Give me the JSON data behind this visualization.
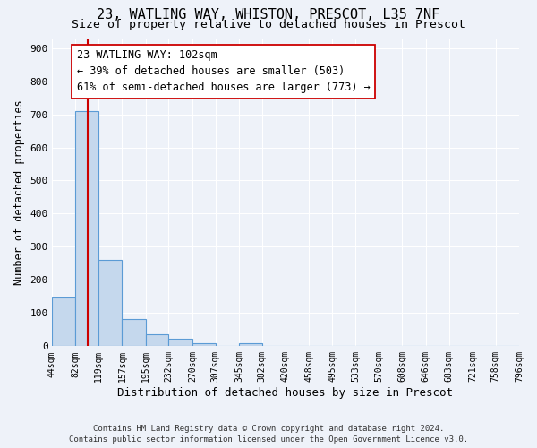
{
  "title": "23, WATLING WAY, WHISTON, PRESCOT, L35 7NF",
  "subtitle": "Size of property relative to detached houses in Prescot",
  "xlabel": "Distribution of detached houses by size in Prescot",
  "ylabel": "Number of detached properties",
  "bin_edges": [
    44,
    82,
    119,
    157,
    195,
    232,
    270,
    307,
    345,
    382,
    420,
    458,
    495,
    533,
    570,
    608,
    646,
    683,
    721,
    758,
    796
  ],
  "bar_heights": [
    148,
    710,
    260,
    83,
    37,
    22,
    10,
    0,
    10,
    0,
    0,
    0,
    0,
    0,
    0,
    0,
    0,
    0,
    0,
    0
  ],
  "bar_color": "#c5d8ed",
  "bar_edge_color": "#5b9bd5",
  "vline_x": 102,
  "vline_color": "#cc0000",
  "annotation_text": "23 WATLING WAY: 102sqm\n← 39% of detached houses are smaller (503)\n61% of semi-detached houses are larger (773) →",
  "annotation_box_color": "#ffffff",
  "annotation_box_edge_color": "#cc0000",
  "ylim": [
    0,
    930
  ],
  "yticks": [
    0,
    100,
    200,
    300,
    400,
    500,
    600,
    700,
    800,
    900
  ],
  "tick_labels": [
    "44sqm",
    "82sqm",
    "119sqm",
    "157sqm",
    "195sqm",
    "232sqm",
    "270sqm",
    "307sqm",
    "345sqm",
    "382sqm",
    "420sqm",
    "458sqm",
    "495sqm",
    "533sqm",
    "570sqm",
    "608sqm",
    "646sqm",
    "683sqm",
    "721sqm",
    "758sqm",
    "796sqm"
  ],
  "footer_text": "Contains HM Land Registry data © Crown copyright and database right 2024.\nContains public sector information licensed under the Open Government Licence v3.0.",
  "background_color": "#eef2f9",
  "grid_color": "#ffffff",
  "title_fontsize": 11,
  "subtitle_fontsize": 9.5,
  "annotation_fontsize": 8.5,
  "xlabel_fontsize": 9,
  "ylabel_fontsize": 8.5,
  "footer_fontsize": 6.5
}
